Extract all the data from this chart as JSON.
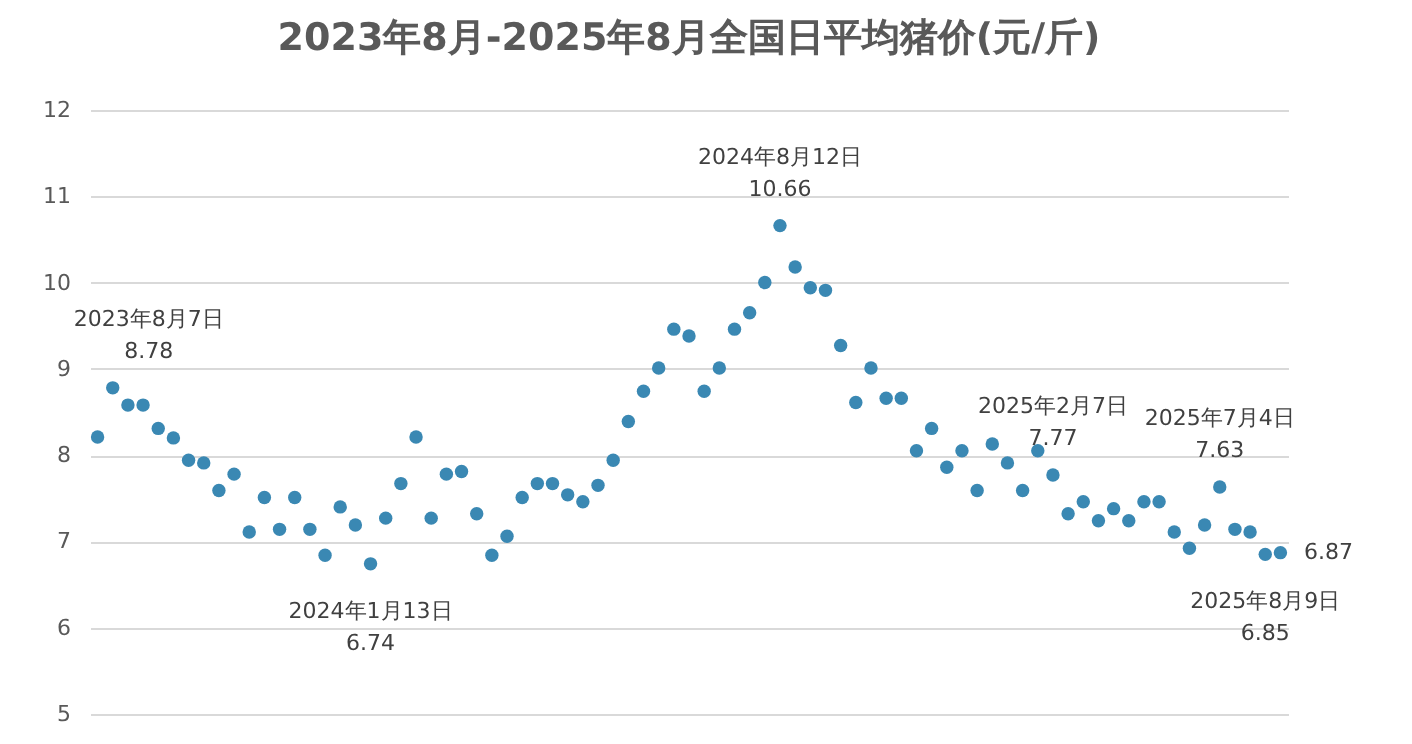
{
  "chart_data": {
    "type": "scatter",
    "title": "2023年8月-2025年8月全国日平均猪价(元/斤)",
    "categories": [
      null,
      null,
      null,
      null,
      null,
      null,
      null,
      null,
      null,
      null,
      null,
      null,
      null,
      null,
      null,
      null,
      null,
      null,
      null,
      null,
      null,
      null,
      null,
      null,
      null,
      null,
      null,
      null,
      null,
      null,
      null,
      null,
      null,
      null,
      null,
      null,
      null,
      null,
      null,
      null,
      null,
      null,
      null,
      null,
      null,
      null,
      null,
      null,
      null,
      null,
      null,
      null,
      null,
      null,
      null,
      null,
      null,
      null,
      null,
      null,
      null,
      null,
      null,
      null,
      null,
      null,
      null,
      null,
      null,
      null,
      null,
      null,
      null,
      null,
      null,
      null,
      null,
      null,
      null
    ],
    "values": [
      8.21,
      8.78,
      8.58,
      8.58,
      8.31,
      8.2,
      7.94,
      7.91,
      7.59,
      7.78,
      7.11,
      7.51,
      7.14,
      7.51,
      7.14,
      6.84,
      7.4,
      7.19,
      6.74,
      7.27,
      7.67,
      8.21,
      7.27,
      7.78,
      7.81,
      7.32,
      6.84,
      7.06,
      7.51,
      7.67,
      7.67,
      7.54,
      7.46,
      7.65,
      7.94,
      8.39,
      8.74,
      9.01,
      9.46,
      9.38,
      8.74,
      9.01,
      9.46,
      9.65,
      10.0,
      10.66,
      10.18,
      9.94,
      9.91,
      9.27,
      8.61,
      9.01,
      8.66,
      8.66,
      8.05,
      8.31,
      7.86,
      8.05,
      7.59,
      8.13,
      7.91,
      7.59,
      8.05,
      7.77,
      7.32,
      7.46,
      7.24,
      7.38,
      7.24,
      7.46,
      7.46,
      7.11,
      6.92,
      7.19,
      7.63,
      7.14,
      7.11,
      6.85,
      6.87
    ],
    "value_labels": [
      null,
      "8.78",
      null,
      null,
      null,
      null,
      null,
      null,
      null,
      null,
      null,
      null,
      null,
      null,
      null,
      null,
      null,
      null,
      "6.74",
      null,
      null,
      null,
      null,
      null,
      null,
      null,
      null,
      null,
      null,
      null,
      null,
      null,
      null,
      null,
      null,
      null,
      null,
      null,
      null,
      null,
      null,
      null,
      null,
      null,
      null,
      "10.66",
      null,
      null,
      null,
      null,
      null,
      null,
      null,
      null,
      null,
      null,
      null,
      null,
      null,
      null,
      null,
      null,
      null,
      "7.77",
      null,
      null,
      null,
      null,
      null,
      null,
      null,
      null,
      null,
      null,
      "7.63",
      null,
      null,
      "6.85",
      "6.87"
    ],
    "color": "#3a88b3",
    "marker": "circle",
    "ylim": [
      5,
      12
    ],
    "yticks": [
      5,
      6,
      7,
      8,
      9,
      10,
      11,
      12
    ],
    "grid": "y",
    "tick_labels": "y",
    "annotations": [
      "2023年8月7日",
      "2024年1月13日",
      "2024年8月12日",
      "2025年2月7日",
      "2025年7月4日",
      "2025年8月9日"
    ]
  }
}
